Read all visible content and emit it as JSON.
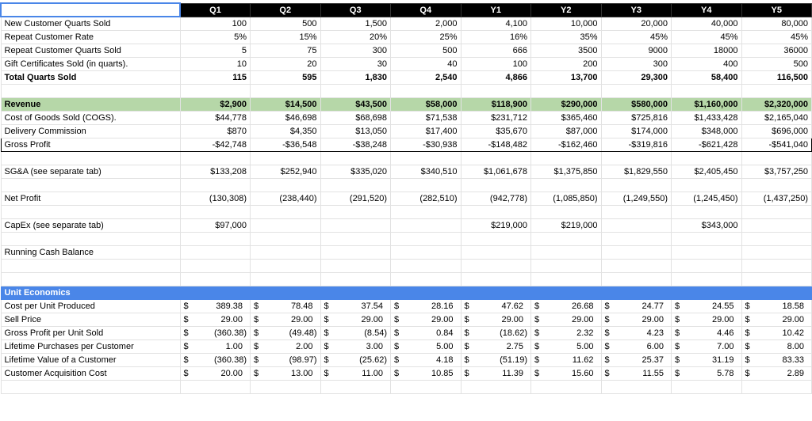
{
  "table": {
    "columns": [
      "Q1",
      "Q2",
      "Q3",
      "Q4",
      "Y1",
      "Y2",
      "Y3",
      "Y4",
      "Y5"
    ],
    "volume_rows": [
      {
        "label": "New Customer Quarts Sold",
        "values": [
          "100",
          "500",
          "1,500",
          "2,000",
          "4,100",
          "10,000",
          "20,000",
          "40,000",
          "80,000"
        ]
      },
      {
        "label": "Repeat Customer Rate",
        "values": [
          "5%",
          "15%",
          "20%",
          "25%",
          "16%",
          "35%",
          "45%",
          "45%",
          "45%"
        ]
      },
      {
        "label": "Repeat Customer Quarts Sold",
        "values": [
          "5",
          "75",
          "300",
          "500",
          "666",
          "3500",
          "9000",
          "18000",
          "36000"
        ]
      },
      {
        "label": "Gift Certificates Sold (in quarts).",
        "values": [
          "10",
          "20",
          "30",
          "40",
          "100",
          "200",
          "300",
          "400",
          "500"
        ]
      }
    ],
    "total_row": {
      "label": "Total Quarts Sold",
      "values": [
        "115",
        "595",
        "1,830",
        "2,540",
        "4,866",
        "13,700",
        "29,300",
        "58,400",
        "116,500"
      ]
    },
    "revenue_row": {
      "label": "Revenue",
      "values": [
        "$2,900",
        "$14,500",
        "$43,500",
        "$58,000",
        "$118,900",
        "$290,000",
        "$580,000",
        "$1,160,000",
        "$2,320,000"
      ]
    },
    "cost_rows": [
      {
        "label": "Cost of Goods Sold (COGS).",
        "values": [
          "$44,778",
          "$46,698",
          "$68,698",
          "$71,538",
          "$231,712",
          "$365,460",
          "$725,816",
          "$1,433,428",
          "$2,165,040"
        ]
      },
      {
        "label": "Delivery Commission",
        "values": [
          "$870",
          "$4,350",
          "$13,050",
          "$17,400",
          "$35,670",
          "$87,000",
          "$174,000",
          "$348,000",
          "$696,000"
        ]
      }
    ],
    "gross_profit_row": {
      "label": "Gross Profit",
      "values": [
        "-$42,748",
        "-$36,548",
        "-$38,248",
        "-$30,938",
        "-$148,482",
        "-$162,460",
        "-$319,816",
        "-$621,428",
        "-$541,040"
      ]
    },
    "sga_row": {
      "label": "SG&A (see separate tab)",
      "values": [
        "$133,208",
        "$252,940",
        "$335,020",
        "$340,510",
        "$1,061,678",
        "$1,375,850",
        "$1,829,550",
        "$2,405,450",
        "$3,757,250"
      ]
    },
    "net_profit_row": {
      "label": "Net Profit",
      "values": [
        "(130,308)",
        "(238,440)",
        "(291,520)",
        "(282,510)",
        "(942,778)",
        "(1,085,850)",
        "(1,249,550)",
        "(1,245,450)",
        "(1,437,250)"
      ]
    },
    "capex_row": {
      "label": "CapEx (see separate tab)",
      "values": [
        "$97,000",
        null,
        null,
        null,
        "$219,000",
        "$219,000",
        null,
        "$343,000",
        null
      ]
    },
    "cash_row": {
      "label": "Running Cash Balance"
    },
    "unit_economics": {
      "title": "Unit Economics",
      "currency_symbol": "$",
      "rows": [
        {
          "label": "Cost per Unit Produced",
          "values": [
            "389.38",
            "78.48",
            "37.54",
            "28.16",
            "47.62",
            "26.68",
            "24.77",
            "24.55",
            "18.58"
          ]
        },
        {
          "label": "Sell Price",
          "values": [
            "29.00",
            "29.00",
            "29.00",
            "29.00",
            "29.00",
            "29.00",
            "29.00",
            "29.00",
            "29.00"
          ]
        },
        {
          "label": "Gross Profit per Unit Sold",
          "values": [
            "(360.38)",
            "(49.48)",
            "(8.54)",
            "0.84",
            "(18.62)",
            "2.32",
            "4.23",
            "4.46",
            "10.42"
          ]
        },
        {
          "label": "Lifetime Purchases per Customer",
          "values": [
            "1.00",
            "2.00",
            "3.00",
            "5.00",
            "2.75",
            "5.00",
            "6.00",
            "7.00",
            "8.00"
          ]
        },
        {
          "label": "Lifetime Value of a Customer",
          "values": [
            "(360.38)",
            "(98.97)",
            "(25.62)",
            "4.18",
            "(51.19)",
            "11.62",
            "25.37",
            "31.19",
            "83.33"
          ]
        },
        {
          "label": "Customer Acquisition Cost",
          "values": [
            "20.00",
            "13.00",
            "11.00",
            "10.85",
            "11.39",
            "15.60",
            "11.55",
            "5.78",
            "2.89"
          ]
        }
      ]
    }
  }
}
